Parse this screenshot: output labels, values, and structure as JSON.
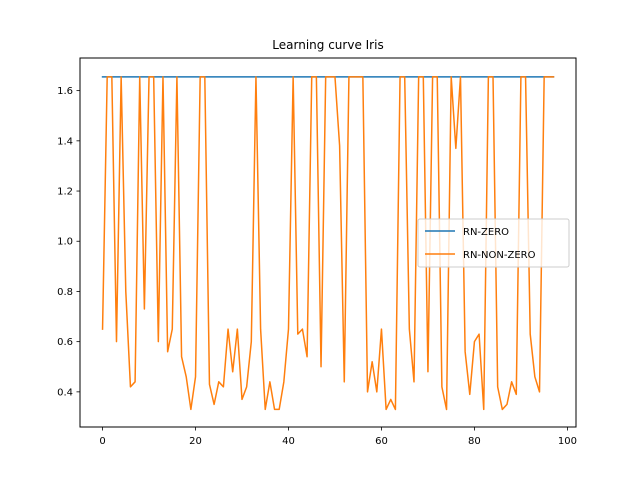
{
  "chart_data": {
    "type": "line",
    "title": "Learning curve Iris",
    "xlabel": "",
    "ylabel": "",
    "xlim": [
      -4.85,
      101.85
    ],
    "ylim": [
      0.26,
      1.73
    ],
    "xticks": [
      0,
      20,
      40,
      60,
      80,
      100
    ],
    "yticks": [
      0.4,
      0.6,
      0.8,
      1.0,
      1.2,
      1.4,
      1.6
    ],
    "ytick_labels": [
      "0.4",
      "0.6",
      "0.8",
      "1.0",
      "1.2",
      "1.4",
      "1.6"
    ],
    "grid": false,
    "legend_placement": "center-right",
    "series": [
      {
        "name": "RN-ZERO",
        "color": "#1f77b4",
        "x": [
          0,
          97
        ],
        "y": [
          1.655,
          1.655
        ]
      },
      {
        "name": "RN-NON-ZERO",
        "color": "#ff7f0e",
        "x": [
          0,
          1,
          2,
          3,
          4,
          5,
          6,
          7,
          8,
          9,
          10,
          11,
          12,
          13,
          14,
          15,
          16,
          17,
          18,
          19,
          20,
          21,
          22,
          23,
          24,
          25,
          26,
          27,
          28,
          29,
          30,
          31,
          32,
          33,
          34,
          35,
          36,
          37,
          38,
          39,
          40,
          41,
          42,
          43,
          44,
          45,
          46,
          47,
          48,
          49,
          50,
          51,
          52,
          53,
          54,
          55,
          56,
          57,
          58,
          59,
          60,
          61,
          62,
          63,
          64,
          65,
          66,
          67,
          68,
          69,
          70,
          71,
          72,
          73,
          74,
          75,
          76,
          77,
          78,
          79,
          80,
          81,
          82,
          83,
          84,
          85,
          86,
          87,
          88,
          89,
          90,
          91,
          92,
          93,
          94,
          95,
          96,
          97
        ],
        "y": [
          0.65,
          1.655,
          1.655,
          0.6,
          1.655,
          0.8,
          0.42,
          0.44,
          1.655,
          0.73,
          1.655,
          1.655,
          0.6,
          1.655,
          0.56,
          0.65,
          1.655,
          0.54,
          0.46,
          0.33,
          0.46,
          1.655,
          1.655,
          0.43,
          0.35,
          0.44,
          0.42,
          0.65,
          0.48,
          0.65,
          0.37,
          0.42,
          0.6,
          1.655,
          0.65,
          0.33,
          0.44,
          0.33,
          0.33,
          0.44,
          0.65,
          1.655,
          0.63,
          0.65,
          0.54,
          1.655,
          1.655,
          0.5,
          1.655,
          1.655,
          1.655,
          1.38,
          0.44,
          1.655,
          1.655,
          1.655,
          1.655,
          0.4,
          0.52,
          0.4,
          0.65,
          0.33,
          0.37,
          0.33,
          1.655,
          1.655,
          0.65,
          0.44,
          1.655,
          1.655,
          0.48,
          1.655,
          1.655,
          0.42,
          0.33,
          1.655,
          1.37,
          1.655,
          0.56,
          0.39,
          0.6,
          0.63,
          0.33,
          1.655,
          1.655,
          0.42,
          0.33,
          0.35,
          0.44,
          0.39,
          1.655,
          1.655,
          0.63,
          0.46,
          0.4,
          1.655,
          1.655,
          1.655
        ]
      }
    ]
  }
}
